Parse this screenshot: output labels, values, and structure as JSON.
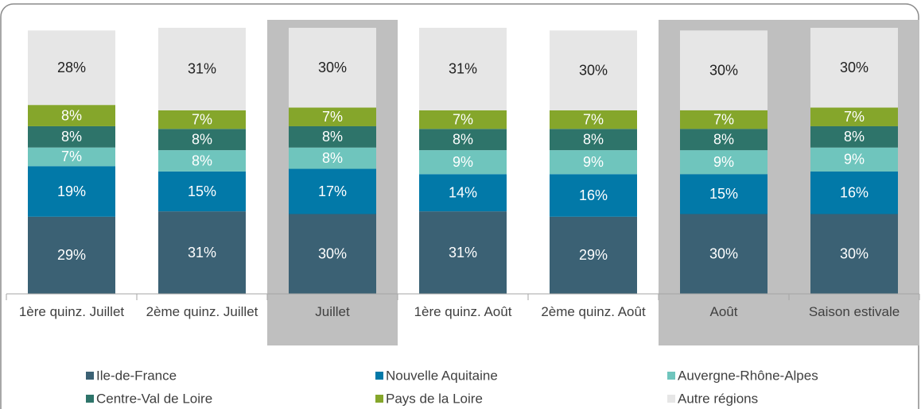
{
  "chart_data": {
    "type": "stacked_bar",
    "categories": [
      "1ère quinz. Juillet",
      "2ème quinz. Juillet",
      "Juillet",
      "1ère quinz. Août",
      "2ème quinz. Août",
      "Août",
      "Saison estivale"
    ],
    "highlight": [
      2,
      5,
      6
    ],
    "ylim": [
      0,
      100
    ],
    "series": [
      {
        "name": "Ile-de-France",
        "color": "#3b6174",
        "label_color": "#ffffff",
        "values": [
          29,
          31,
          30,
          31,
          29,
          30,
          30
        ],
        "value_labels": [
          "29%",
          "31%",
          "30%",
          "31%",
          "29%",
          "30%",
          "30%"
        ]
      },
      {
        "name": "Nouvelle Aquitaine",
        "color": "#0279a8",
        "label_color": "#ffffff",
        "values": [
          19,
          15,
          17,
          14,
          16,
          15,
          16
        ],
        "value_labels": [
          "19%",
          "15%",
          "17%",
          "14%",
          "16%",
          "15%",
          "16%"
        ]
      },
      {
        "name": "Auvergne-Rhône-Alpes",
        "color": "#6fc5bd",
        "label_color": "#ffffff",
        "values": [
          7,
          8,
          8,
          9,
          9,
          9,
          9
        ],
        "value_labels": [
          "7%",
          "8%",
          "8%",
          "9%",
          "9%",
          "9%",
          "9%"
        ]
      },
      {
        "name": "Centre-Val de Loire",
        "color": "#2e746a",
        "label_color": "#ffffff",
        "values": [
          8,
          8,
          8,
          8,
          8,
          8,
          8
        ],
        "value_labels": [
          "8%",
          "8%",
          "8%",
          "8%",
          "8%",
          "8%",
          "8%"
        ]
      },
      {
        "name": "Pays de la Loire",
        "color": "#85a62b",
        "label_color": "#ffffff",
        "values": [
          8,
          7,
          7,
          7,
          7,
          7,
          7
        ],
        "value_labels": [
          "8%",
          "7%",
          "7%",
          "7%",
          "7%",
          "7%",
          "7%"
        ]
      },
      {
        "name": "Autre régions",
        "color": "#e6e6e6",
        "label_color": "#222222",
        "values": [
          28,
          31,
          30,
          31,
          30,
          30,
          30
        ],
        "value_labels": [
          "28%",
          "31%",
          "30%",
          "31%",
          "30%",
          "30%",
          "30%"
        ]
      }
    ]
  }
}
